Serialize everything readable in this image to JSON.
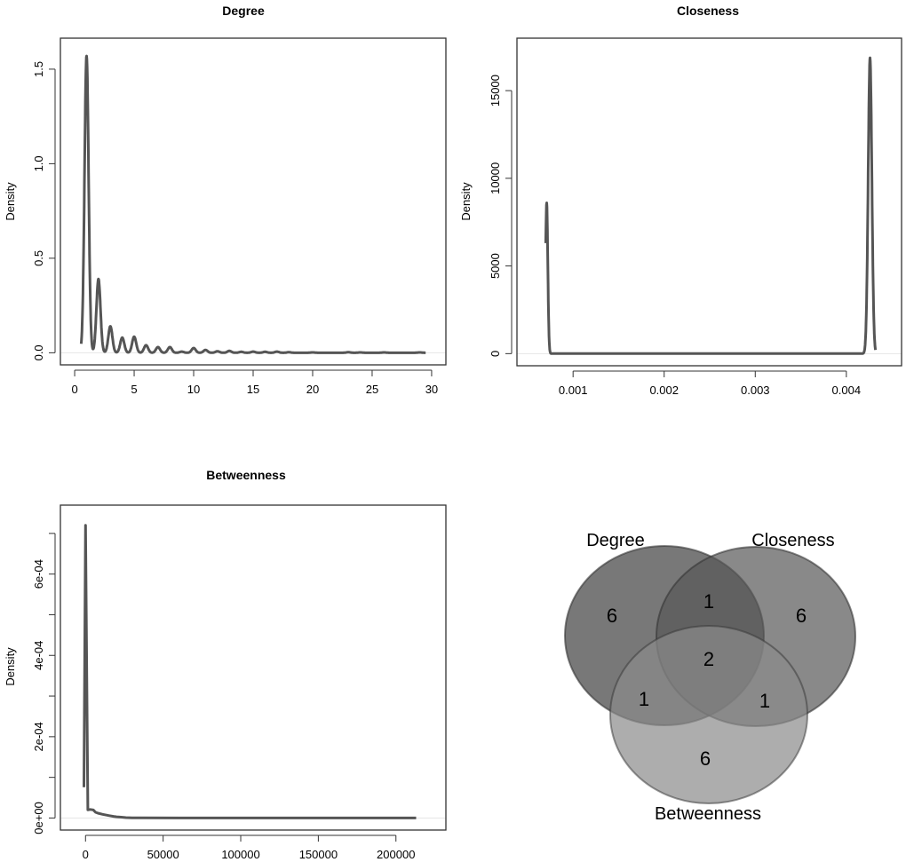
{
  "colors": {
    "line": "#555555",
    "frame": "#333333",
    "degree": "#3f3f3f",
    "closeness": "#575757",
    "betweenness": "#8a8a8a"
  },
  "chart_data": [
    {
      "type": "line",
      "title": "Degree",
      "xlabel": "",
      "ylabel": "Density",
      "xlim": [
        0,
        30
      ],
      "ylim": [
        0,
        1.6
      ],
      "xticks": [
        0,
        5,
        10,
        15,
        20,
        25,
        30
      ],
      "xtick_labels": [
        "0",
        "5",
        "10",
        "15",
        "20",
        "25",
        "30"
      ],
      "yticks": [
        0,
        0.5,
        1.0,
        1.5
      ],
      "ytick_labels": [
        "0.0",
        "0.5",
        "1.0",
        "1.5"
      ],
      "x_range": [
        0.55,
        29.5
      ],
      "peaks": {
        "x": [
          1,
          2,
          3,
          4,
          5,
          6,
          7,
          8,
          9,
          10,
          11,
          12,
          13,
          14,
          15,
          16,
          17,
          18,
          20,
          23,
          24,
          26,
          29
        ],
        "density": [
          1.57,
          0.39,
          0.14,
          0.08,
          0.085,
          0.04,
          0.03,
          0.03,
          0.006,
          0.025,
          0.015,
          0.008,
          0.01,
          0.005,
          0.006,
          0.005,
          0.006,
          0.003,
          0.002,
          0.003,
          0.002,
          0.002,
          0.002
        ]
      },
      "grid": false
    },
    {
      "type": "line",
      "title": "Closeness",
      "xlabel": "",
      "ylabel": "Density",
      "xlim": [
        0.00054,
        0.00445
      ],
      "ylim": [
        0,
        17300
      ],
      "xticks": [
        0.001,
        0.002,
        0.003,
        0.004
      ],
      "xtick_labels": [
        "0.001",
        "0.002",
        "0.003",
        "0.004"
      ],
      "yticks": [
        0,
        5000,
        10000,
        15000
      ],
      "ytick_labels": [
        "0",
        "5000",
        "10000",
        "15000"
      ],
      "x_range": [
        0.0007,
        0.00432
      ],
      "peaks": {
        "x": [
          0.00071,
          0.00426
        ],
        "density": [
          8600,
          16880
        ]
      },
      "grid": false
    },
    {
      "type": "line",
      "title": "Betweenness",
      "xlabel": "",
      "ylabel": "Density",
      "xlim": [
        -7000,
        223000
      ],
      "ylim": [
        0,
        0.00074
      ],
      "xticks": [
        0,
        50000,
        100000,
        150000,
        200000
      ],
      "xtick_labels": [
        "0",
        "50000",
        "100000",
        "150000",
        "200000"
      ],
      "yticks": [
        0,
        0.0001,
        0.0002,
        0.0003,
        0.0004,
        0.0005,
        0.0006,
        0.0007
      ],
      "ytick_labels": [
        "0e+00",
        "",
        "2e-04",
        "",
        "4e-04",
        "",
        "6e-04",
        ""
      ],
      "x": [
        -1000,
        0,
        1500,
        3000,
        5000,
        6500,
        8000,
        11000,
        15000,
        18000,
        20000,
        23000,
        26000,
        30000,
        35000,
        60000,
        110000,
        213000
      ],
      "y": [
        7.6e-05,
        0.00072,
        2e-05,
        2.1e-05,
        2e-05,
        1.4e-05,
        1.2e-05,
        9e-06,
        6e-06,
        4e-06,
        3e-06,
        2e-06,
        1e-06,
        5e-07,
        3e-07,
        2e-07,
        1e-07,
        1e-07
      ],
      "grid": false
    }
  ],
  "venn": {
    "sets": [
      "Degree",
      "Closeness",
      "Betweenness"
    ],
    "counts": {
      "degree_only": "6",
      "closeness_only": "6",
      "betweenness_only": "6",
      "degree_closeness": "1",
      "degree_betweenness": "1",
      "closeness_betweenness": "1",
      "all_three": "2"
    }
  }
}
